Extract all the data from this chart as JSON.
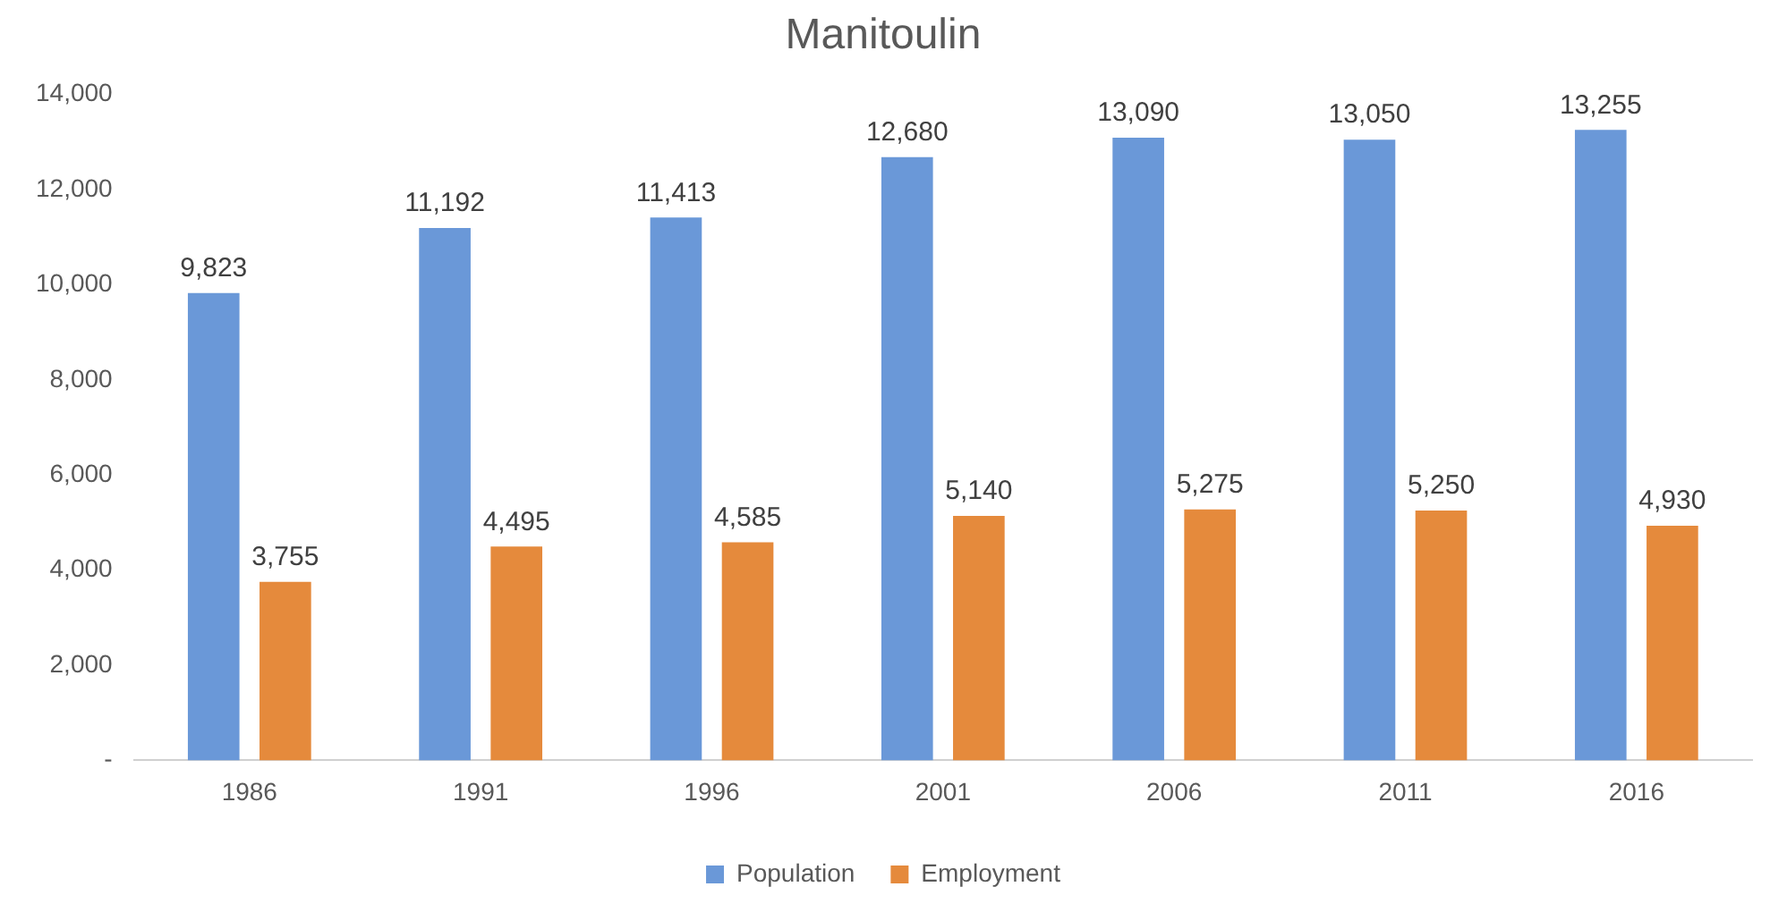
{
  "chart_data": {
    "type": "bar",
    "title": "Manitoulin",
    "categories": [
      "1986",
      "1991",
      "1996",
      "2001",
      "2006",
      "2011",
      "2016"
    ],
    "series": [
      {
        "name": "Population",
        "color": "#6a98d8",
        "values": [
          9823,
          11192,
          11413,
          12680,
          13090,
          13050,
          13255
        ],
        "value_labels": [
          "9,823",
          "11,192",
          "11,413",
          "12,680",
          "13,090",
          "13,050",
          "13,255"
        ]
      },
      {
        "name": "Employment",
        "color": "#e58a3c",
        "values": [
          3755,
          4495,
          4585,
          5140,
          5275,
          5250,
          4930
        ],
        "value_labels": [
          "3,755",
          "4,495",
          "4,585",
          "5,140",
          "5,275",
          "5,250",
          "4,930"
        ]
      }
    ],
    "ylim": [
      0,
      14000
    ],
    "yticks": [
      {
        "value": 0,
        "label": "-"
      },
      {
        "value": 2000,
        "label": "2,000"
      },
      {
        "value": 4000,
        "label": "4,000"
      },
      {
        "value": 6000,
        "label": "6,000"
      },
      {
        "value": 8000,
        "label": "8,000"
      },
      {
        "value": 10000,
        "label": "10,000"
      },
      {
        "value": 12000,
        "label": "12,000"
      },
      {
        "value": 14000,
        "label": "14,000"
      }
    ],
    "grid": false,
    "legend": "bottom"
  }
}
